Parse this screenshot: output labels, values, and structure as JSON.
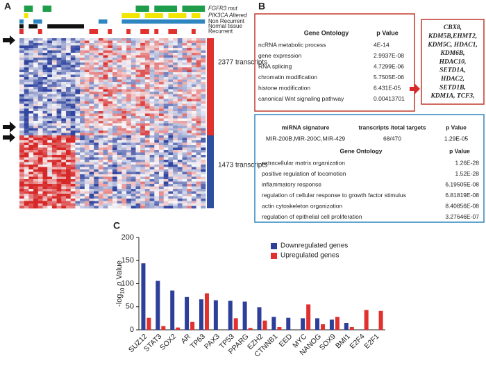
{
  "panel_a": {
    "label": "A",
    "tracks": [
      "FGFR3 mut",
      "PIK3CA Altered",
      "Non Recurrent",
      "Normal tissue",
      "Recurrent"
    ],
    "clusters": [
      "2377 transcripts",
      "1473 transcripts"
    ]
  },
  "panel_b": {
    "label": "B",
    "table1": {
      "header": [
        "Gene Ontology",
        "p Value"
      ],
      "rows": [
        [
          "ncRNA metabolic process",
          "4E-14"
        ],
        [
          "gene expression",
          "2.9937E-08"
        ],
        [
          "RNA splicing",
          "4.7299E-06"
        ],
        [
          "chromatin modification",
          "5.7505E-06"
        ],
        [
          "histone modification",
          "6.431E-05"
        ],
        [
          "canonical Wnt signaling pathway",
          "0.00413701"
        ]
      ]
    },
    "genes": [
      "CBX8,",
      "KDM5B,EHMT2,",
      "KDM5C, HDAC1,",
      "KDM6B,",
      "HDAC10,",
      "SETD1A,",
      "HDAC2,",
      "SETD1B,",
      "KDM1A, TCF3,"
    ],
    "table2": {
      "mirna_header": [
        "miRNA signature",
        "transcripts /total targets",
        "p Value"
      ],
      "mirna_row": [
        "MIR-200B,MIR-200C,MIR-429",
        "68/470",
        "1.29E-05"
      ],
      "go_header": [
        "Gene Ontology",
        "p Value"
      ],
      "rows": [
        [
          "extracellular matrix organization",
          "1.26E-28"
        ],
        [
          "positive regulation of locomotion",
          "1.52E-28"
        ],
        [
          "inflammatory response",
          "6.19505E-08"
        ],
        [
          "regulation of cellular response to growth factor stimulus",
          "6.81819E-08"
        ],
        [
          "actin cytoskeleton organization",
          "8.40856E-08"
        ],
        [
          "regulation of epithelial cell proliferation",
          "3.27646E-07"
        ]
      ]
    }
  },
  "chart_data": {
    "type": "bar",
    "panel_label": "C",
    "ylabel_parts": [
      "-log",
      "10",
      "p",
      "Value"
    ],
    "categories": [
      "SUZ12",
      "STAT3",
      "SOX2",
      "AR",
      "TP63",
      "PAX3",
      "TP53",
      "PPARG",
      "EZH2",
      "CTNNB1",
      "EED",
      "MYC",
      "NANOG",
      "SOX9",
      "BMI1",
      "E2F4",
      "E2F1"
    ],
    "series": [
      {
        "name": "Downregulated genes",
        "color": "#2e3f99",
        "values": [
          144,
          106,
          85,
          71,
          66,
          64,
          63,
          61,
          49,
          28,
          26,
          25,
          25,
          22,
          15,
          null,
          null
        ]
      },
      {
        "name": "Upregulated genes",
        "color": "#e0312f",
        "values": [
          26,
          8,
          5,
          17,
          79,
          null,
          25,
          4,
          20,
          6,
          null,
          55,
          12,
          28,
          6,
          43,
          41
        ]
      }
    ],
    "ylim": [
      0,
      200
    ],
    "yticks": [
      0,
      50,
      100,
      150,
      200
    ]
  }
}
